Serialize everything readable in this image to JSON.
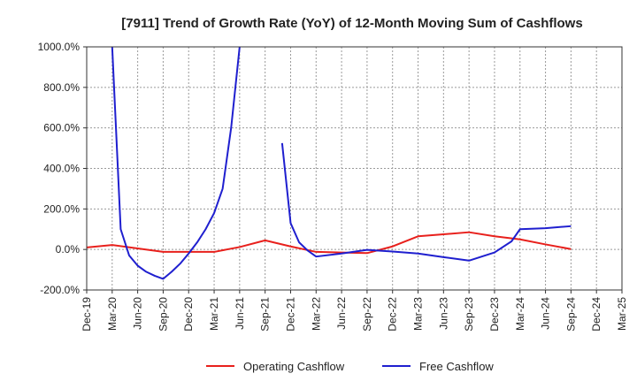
{
  "chart_data": {
    "type": "line",
    "title": "[7911]  Trend of Growth Rate (YoY) of 12-Month Moving Sum of Cashflows",
    "xlabel": "",
    "ylabel": "",
    "ylim": [
      -200,
      1000
    ],
    "y_ticks": [
      1000,
      800,
      600,
      400,
      200,
      0,
      -200
    ],
    "y_tick_labels": [
      "1000.0%",
      "800.0%",
      "600.0%",
      "400.0%",
      "200.0%",
      "0.0%",
      "-200.0%"
    ],
    "x_range": [
      "2019-12",
      "2025-03"
    ],
    "x_tick_labels": [
      "Dec-19",
      "Mar-20",
      "Jun-20",
      "Sep-20",
      "Dec-20",
      "Mar-21",
      "Jun-21",
      "Sep-21",
      "Dec-21",
      "Mar-22",
      "Jun-22",
      "Sep-22",
      "Dec-22",
      "Mar-23",
      "Jun-23",
      "Sep-23",
      "Dec-23",
      "Mar-24",
      "Jun-24",
      "Sep-24",
      "Dec-24",
      "Mar-25"
    ],
    "grid": true,
    "legend_position": "bottom",
    "series": [
      {
        "name": "Operating Cashflow",
        "color": "#e8201c",
        "points": [
          {
            "x": "2019-12",
            "y": 10
          },
          {
            "x": "2020-03",
            "y": 22
          },
          {
            "x": "2020-06",
            "y": 5
          },
          {
            "x": "2020-09",
            "y": -12
          },
          {
            "x": "2020-12",
            "y": -12
          },
          {
            "x": "2021-03",
            "y": -12
          },
          {
            "x": "2021-06",
            "y": 12
          },
          {
            "x": "2021-09",
            "y": 45
          },
          {
            "x": "2021-12",
            "y": 15
          },
          {
            "x": "2022-03",
            "y": -12
          },
          {
            "x": "2022-06",
            "y": -15
          },
          {
            "x": "2022-09",
            "y": -18
          },
          {
            "x": "2022-12",
            "y": 15
          },
          {
            "x": "2023-03",
            "y": 65
          },
          {
            "x": "2023-06",
            "y": 75
          },
          {
            "x": "2023-09",
            "y": 85
          },
          {
            "x": "2023-12",
            "y": 65
          },
          {
            "x": "2024-03",
            "y": 50
          },
          {
            "x": "2024-06",
            "y": 25
          },
          {
            "x": "2024-09",
            "y": 2
          }
        ]
      },
      {
        "name": "Free Cashflow",
        "color": "#1f1fcf",
        "segments": [
          [
            {
              "x": "2020-03",
              "y": 1000
            },
            {
              "x": "2020-04",
              "y": 100
            },
            {
              "x": "2020-05",
              "y": -30
            },
            {
              "x": "2020-06",
              "y": -80
            },
            {
              "x": "2020-07",
              "y": -110
            },
            {
              "x": "2020-08",
              "y": -130
            },
            {
              "x": "2020-09",
              "y": -145
            },
            {
              "x": "2020-10",
              "y": -110
            },
            {
              "x": "2020-11",
              "y": -70
            },
            {
              "x": "2020-12",
              "y": -20
            },
            {
              "x": "2021-01",
              "y": 35
            },
            {
              "x": "2021-02",
              "y": 100
            },
            {
              "x": "2021-03",
              "y": 180
            },
            {
              "x": "2021-04",
              "y": 300
            },
            {
              "x": "2021-05",
              "y": 600
            },
            {
              "x": "2021-06",
              "y": 1000
            }
          ],
          [
            {
              "x": "2021-11",
              "y": 525
            },
            {
              "x": "2021-12",
              "y": 130
            },
            {
              "x": "2022-01",
              "y": 35
            },
            {
              "x": "2022-02",
              "y": -5
            },
            {
              "x": "2022-03",
              "y": -35
            },
            {
              "x": "2022-06",
              "y": -20
            },
            {
              "x": "2022-09",
              "y": -2
            },
            {
              "x": "2022-12",
              "y": -10
            },
            {
              "x": "2023-03",
              "y": -20
            },
            {
              "x": "2023-06",
              "y": -38
            },
            {
              "x": "2023-09",
              "y": -55
            },
            {
              "x": "2023-12",
              "y": -15
            },
            {
              "x": "2024-02",
              "y": 40
            },
            {
              "x": "2024-03",
              "y": 100
            },
            {
              "x": "2024-06",
              "y": 105
            },
            {
              "x": "2024-09",
              "y": 115
            }
          ]
        ]
      }
    ]
  }
}
